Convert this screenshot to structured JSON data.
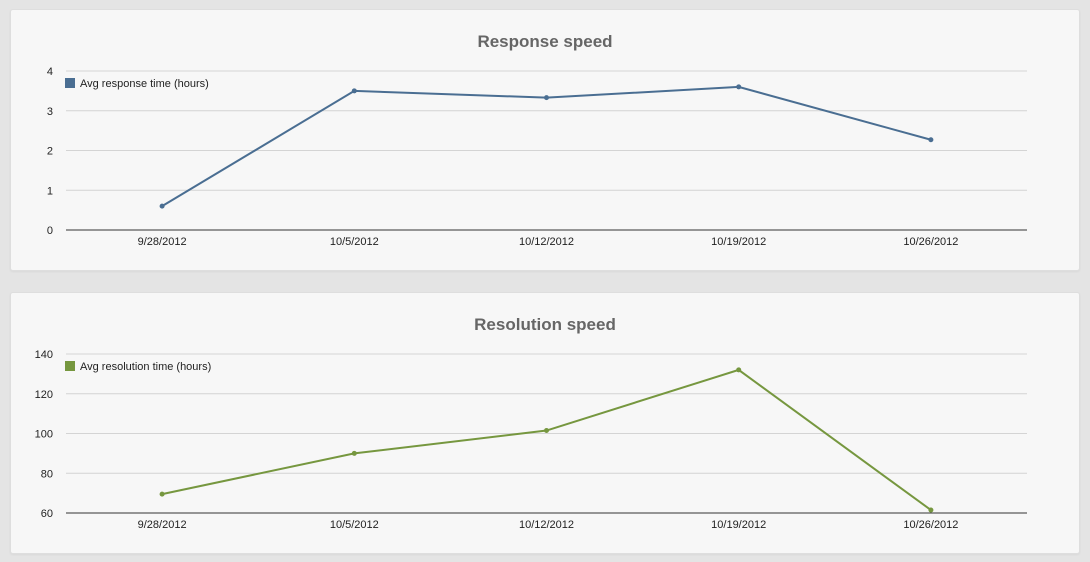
{
  "chart_data": [
    {
      "id": "response",
      "type": "line",
      "title": "Response speed",
      "categories": [
        "9/28/2012",
        "10/5/2012",
        "10/12/2012",
        "10/19/2012",
        "10/26/2012"
      ],
      "series": [
        {
          "name": "Avg response time (hours)",
          "values": [
            0.6,
            3.5,
            3.33,
            3.6,
            2.27
          ],
          "color": "#4a6e92"
        }
      ],
      "yticks": [
        0,
        1,
        2,
        3,
        4
      ],
      "ylim": [
        0,
        4
      ],
      "grid": true,
      "legend": "top-left"
    },
    {
      "id": "resolution",
      "type": "line",
      "title": "Resolution speed",
      "categories": [
        "9/28/2012",
        "10/5/2012",
        "10/12/2012",
        "10/19/2012",
        "10/26/2012"
      ],
      "series": [
        {
          "name": "Avg resolution time (hours)",
          "values": [
            69.5,
            90,
            101.5,
            132,
            61.5
          ],
          "color": "#76973f"
        }
      ],
      "yticks": [
        60,
        80,
        100,
        120,
        140
      ],
      "ylim": [
        60,
        140
      ],
      "grid": true,
      "legend": "top-left"
    }
  ]
}
